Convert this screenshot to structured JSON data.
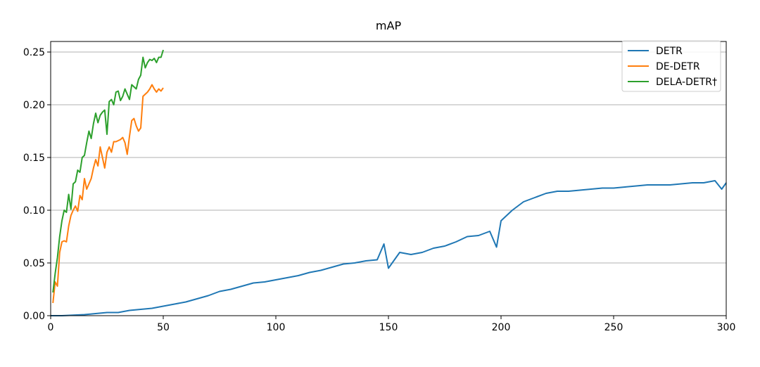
{
  "chart_data": {
    "type": "line",
    "title": "mAP",
    "xlabel": "",
    "ylabel": "",
    "xlim": [
      0,
      300
    ],
    "ylim": [
      0,
      0.26
    ],
    "xticks": [
      0,
      50,
      100,
      150,
      200,
      250,
      300
    ],
    "xtick_labels": [
      "0",
      "50",
      "100",
      "150",
      "200",
      "250",
      "300"
    ],
    "yticks": [
      0,
      0.05,
      0.1,
      0.15,
      0.2,
      0.25
    ],
    "ytick_labels": [
      "0.00",
      "0.05",
      "0.10",
      "0.15",
      "0.20",
      "0.25"
    ],
    "grid": "horizontal",
    "legend_position": "top-right",
    "series": [
      {
        "name": "DETR",
        "color": "#1f77b4",
        "points": [
          [
            0,
            0
          ],
          [
            5,
            0
          ],
          [
            10,
            0.0005
          ],
          [
            15,
            0.001
          ],
          [
            20,
            0.002
          ],
          [
            25,
            0.003
          ],
          [
            30,
            0.003
          ],
          [
            35,
            0.005
          ],
          [
            40,
            0.006
          ],
          [
            45,
            0.007
          ],
          [
            50,
            0.009
          ],
          [
            55,
            0.011
          ],
          [
            60,
            0.013
          ],
          [
            65,
            0.016
          ],
          [
            70,
            0.019
          ],
          [
            75,
            0.023
          ],
          [
            80,
            0.025
          ],
          [
            85,
            0.028
          ],
          [
            90,
            0.031
          ],
          [
            95,
            0.032
          ],
          [
            100,
            0.034
          ],
          [
            105,
            0.036
          ],
          [
            110,
            0.038
          ],
          [
            115,
            0.041
          ],
          [
            120,
            0.043
          ],
          [
            125,
            0.046
          ],
          [
            130,
            0.049
          ],
          [
            135,
            0.05
          ],
          [
            140,
            0.052
          ],
          [
            145,
            0.053
          ],
          [
            148,
            0.068
          ],
          [
            150,
            0.045
          ],
          [
            155,
            0.06
          ],
          [
            160,
            0.058
          ],
          [
            165,
            0.06
          ],
          [
            170,
            0.064
          ],
          [
            175,
            0.066
          ],
          [
            180,
            0.07
          ],
          [
            185,
            0.075
          ],
          [
            190,
            0.076
          ],
          [
            195,
            0.08
          ],
          [
            198,
            0.065
          ],
          [
            200,
            0.09
          ],
          [
            205,
            0.1
          ],
          [
            210,
            0.108
          ],
          [
            215,
            0.112
          ],
          [
            220,
            0.116
          ],
          [
            225,
            0.118
          ],
          [
            230,
            0.118
          ],
          [
            235,
            0.119
          ],
          [
            240,
            0.12
          ],
          [
            245,
            0.121
          ],
          [
            250,
            0.121
          ],
          [
            255,
            0.122
          ],
          [
            260,
            0.123
          ],
          [
            265,
            0.124
          ],
          [
            270,
            0.124
          ],
          [
            275,
            0.124
          ],
          [
            280,
            0.125
          ],
          [
            285,
            0.126
          ],
          [
            290,
            0.126
          ],
          [
            295,
            0.128
          ],
          [
            298,
            0.12
          ],
          [
            300,
            0.126
          ]
        ]
      },
      {
        "name": "DE-DETR",
        "color": "#ff7f0e",
        "points": [
          [
            1,
            0.012
          ],
          [
            2,
            0.032
          ],
          [
            3,
            0.028
          ],
          [
            4,
            0.06
          ],
          [
            5,
            0.07
          ],
          [
            6,
            0.071
          ],
          [
            7,
            0.07
          ],
          [
            8,
            0.085
          ],
          [
            9,
            0.095
          ],
          [
            10,
            0.1
          ],
          [
            11,
            0.104
          ],
          [
            12,
            0.099
          ],
          [
            13,
            0.114
          ],
          [
            14,
            0.11
          ],
          [
            15,
            0.13
          ],
          [
            16,
            0.12
          ],
          [
            17,
            0.125
          ],
          [
            18,
            0.13
          ],
          [
            19,
            0.14
          ],
          [
            20,
            0.148
          ],
          [
            21,
            0.142
          ],
          [
            22,
            0.16
          ],
          [
            23,
            0.15
          ],
          [
            24,
            0.14
          ],
          [
            25,
            0.155
          ],
          [
            26,
            0.16
          ],
          [
            27,
            0.155
          ],
          [
            28,
            0.165
          ],
          [
            29,
            0.165
          ],
          [
            30,
            0.166
          ],
          [
            31,
            0.167
          ],
          [
            32,
            0.169
          ],
          [
            33,
            0.164
          ],
          [
            34,
            0.153
          ],
          [
            35,
            0.17
          ],
          [
            36,
            0.185
          ],
          [
            37,
            0.187
          ],
          [
            38,
            0.18
          ],
          [
            39,
            0.175
          ],
          [
            40,
            0.178
          ],
          [
            41,
            0.208
          ],
          [
            42,
            0.21
          ],
          [
            43,
            0.212
          ],
          [
            44,
            0.215
          ],
          [
            45,
            0.219
          ],
          [
            46,
            0.215
          ],
          [
            47,
            0.212
          ],
          [
            48,
            0.215
          ],
          [
            49,
            0.213
          ],
          [
            50,
            0.216
          ]
        ]
      },
      {
        "name": "DELA-DETR†",
        "color": "#2ca02c",
        "points": [
          [
            1,
            0.022
          ],
          [
            2,
            0.04
          ],
          [
            3,
            0.055
          ],
          [
            4,
            0.075
          ],
          [
            5,
            0.09
          ],
          [
            6,
            0.1
          ],
          [
            7,
            0.098
          ],
          [
            8,
            0.115
          ],
          [
            9,
            0.101
          ],
          [
            10,
            0.125
          ],
          [
            11,
            0.127
          ],
          [
            12,
            0.138
          ],
          [
            13,
            0.136
          ],
          [
            14,
            0.15
          ],
          [
            15,
            0.152
          ],
          [
            16,
            0.164
          ],
          [
            17,
            0.175
          ],
          [
            18,
            0.168
          ],
          [
            19,
            0.182
          ],
          [
            20,
            0.192
          ],
          [
            21,
            0.183
          ],
          [
            22,
            0.19
          ],
          [
            23,
            0.193
          ],
          [
            24,
            0.195
          ],
          [
            25,
            0.172
          ],
          [
            26,
            0.203
          ],
          [
            27,
            0.205
          ],
          [
            28,
            0.2
          ],
          [
            29,
            0.212
          ],
          [
            30,
            0.213
          ],
          [
            31,
            0.204
          ],
          [
            32,
            0.208
          ],
          [
            33,
            0.215
          ],
          [
            34,
            0.21
          ],
          [
            35,
            0.205
          ],
          [
            36,
            0.219
          ],
          [
            37,
            0.217
          ],
          [
            38,
            0.215
          ],
          [
            39,
            0.224
          ],
          [
            40,
            0.228
          ],
          [
            41,
            0.245
          ],
          [
            42,
            0.235
          ],
          [
            43,
            0.24
          ],
          [
            44,
            0.243
          ],
          [
            45,
            0.242
          ],
          [
            46,
            0.244
          ],
          [
            47,
            0.24
          ],
          [
            48,
            0.245
          ],
          [
            49,
            0.245
          ],
          [
            50,
            0.252
          ]
        ]
      }
    ]
  }
}
